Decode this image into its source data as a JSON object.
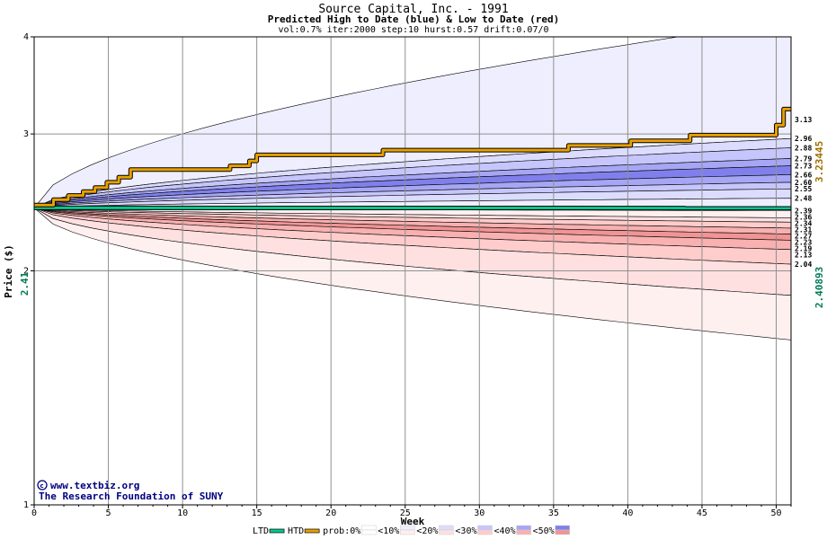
{
  "chart_data": {
    "type": "area",
    "title": "Source Capital, Inc. - 1991",
    "subtitle": "Predicted High to Date (blue) &  Low to Date (red)",
    "params": "vol:0.7% iter:2000 step:10 hurst:0.57 drift:0.07/0",
    "xlabel": "Week",
    "ylabel": "Price ($)",
    "xlim": [
      0,
      51
    ],
    "ylim": [
      1,
      4
    ],
    "y_scale": "log",
    "x_ticks": [
      0,
      5,
      10,
      15,
      20,
      25,
      30,
      35,
      40,
      45,
      50
    ],
    "y_ticks": [
      1,
      2,
      3,
      4
    ],
    "grid": true,
    "start_price": 2.41,
    "start_price_label": "2.41",
    "htd_current_label": "3.23445",
    "ltd_current_label": "2.40893",
    "right_labels": [
      "3.13",
      "2.96",
      "2.88",
      "2.79",
      "2.73",
      "2.66",
      "2.60",
      "2.55",
      "2.48",
      "2.39",
      "2.36",
      "2.34",
      "2.31",
      "2.27",
      "2.23",
      "2.19",
      "2.13",
      "2.04"
    ],
    "high_bands": [
      {
        "prob": "<10%",
        "color": "#eeeeff",
        "end": [
          4.2,
          2.96
        ]
      },
      {
        "prob": "<20%",
        "color": "#dcdcff",
        "end": [
          2.96,
          2.88
        ]
      },
      {
        "prob": "<30%",
        "color": "#c6c6fc",
        "end": [
          2.88,
          2.79
        ]
      },
      {
        "prob": "<40%",
        "color": "#a6a6f4",
        "end": [
          2.79,
          2.73
        ]
      },
      {
        "prob": "<50%",
        "color": "#8080ec",
        "end": [
          2.73,
          2.66
        ]
      },
      {
        "prob": "<40%",
        "color": "#a6a6f4",
        "end": [
          2.66,
          2.6
        ]
      },
      {
        "prob": "<30%",
        "color": "#c6c6fc",
        "end": [
          2.6,
          2.55
        ]
      },
      {
        "prob": "<20%",
        "color": "#dcdcff",
        "end": [
          2.55,
          2.48
        ]
      },
      {
        "prob": "<10%",
        "color": "#eeeeff",
        "end": [
          2.48,
          2.41
        ]
      }
    ],
    "low_bands": [
      {
        "prob": "<10%",
        "color": "#fff0f0",
        "end": [
          2.39,
          2.34
        ]
      },
      {
        "prob": "<20%",
        "color": "#ffe0e0",
        "end": [
          2.34,
          2.31
        ]
      },
      {
        "prob": "<30%",
        "color": "#ffcccc",
        "end": [
          2.31,
          2.27
        ]
      },
      {
        "prob": "<40%",
        "color": "#f8b0b0",
        "end": [
          2.27,
          2.23
        ]
      },
      {
        "prob": "<50%",
        "color": "#f09494",
        "end": [
          2.23,
          2.19
        ]
      },
      {
        "prob": "<40%",
        "color": "#f8b0b0",
        "end": [
          2.19,
          2.13
        ]
      },
      {
        "prob": "<30%",
        "color": "#ffcccc",
        "end": [
          2.13,
          2.04
        ]
      },
      {
        "prob": "<20%",
        "color": "#ffe0e0",
        "end": [
          2.04,
          1.86
        ]
      },
      {
        "prob": "<10%",
        "color": "#fff0f0",
        "end": [
          1.86,
          1.63
        ]
      }
    ],
    "htd_series": {
      "name": "HTD",
      "color": "#e8a000",
      "x": [
        0,
        1.3,
        1.3,
        2.3,
        2.3,
        3.3,
        3.3,
        4.1,
        4.1,
        4.9,
        4.9,
        5.7,
        5.7,
        6.5,
        6.5,
        13.2,
        13.2,
        14.5,
        14.5,
        15.0,
        15.0,
        23.5,
        23.5,
        36.0,
        36.0,
        40.2,
        40.2,
        44.2,
        44.2,
        50.0,
        50.0,
        50.5,
        50.5,
        51.0
      ],
      "y": [
        2.43,
        2.43,
        2.47,
        2.47,
        2.5,
        2.5,
        2.53,
        2.53,
        2.56,
        2.56,
        2.6,
        2.6,
        2.64,
        2.64,
        2.7,
        2.7,
        2.73,
        2.73,
        2.77,
        2.77,
        2.82,
        2.82,
        2.86,
        2.86,
        2.9,
        2.9,
        2.94,
        2.94,
        2.99,
        2.99,
        3.08,
        3.08,
        3.23,
        3.23
      ]
    },
    "ltd_series": {
      "name": "LTD",
      "color": "#00c890",
      "x": [
        0,
        51
      ],
      "y": [
        2.41,
        2.40893
      ]
    },
    "legend": {
      "items": [
        "LTD",
        "HTD",
        "prob:0%",
        "<10%",
        "<20%",
        "<30%",
        "<40%",
        "<50%"
      ],
      "colors": [
        "#00c890",
        "#e8a000",
        "#ffffff",
        "#eeeeff",
        "#dcdcff",
        "#c6c6fc",
        "#a6a6f4",
        "#8080ec"
      ],
      "swatches_red": [
        "#fff0f0",
        "#ffe0e0",
        "#ffcccc",
        "#f8b0b0",
        "#f09494"
      ],
      "placement": "bottom"
    }
  },
  "credit": {
    "url": "www.textbiz.org",
    "org": "The Research Foundation of SUNY"
  }
}
